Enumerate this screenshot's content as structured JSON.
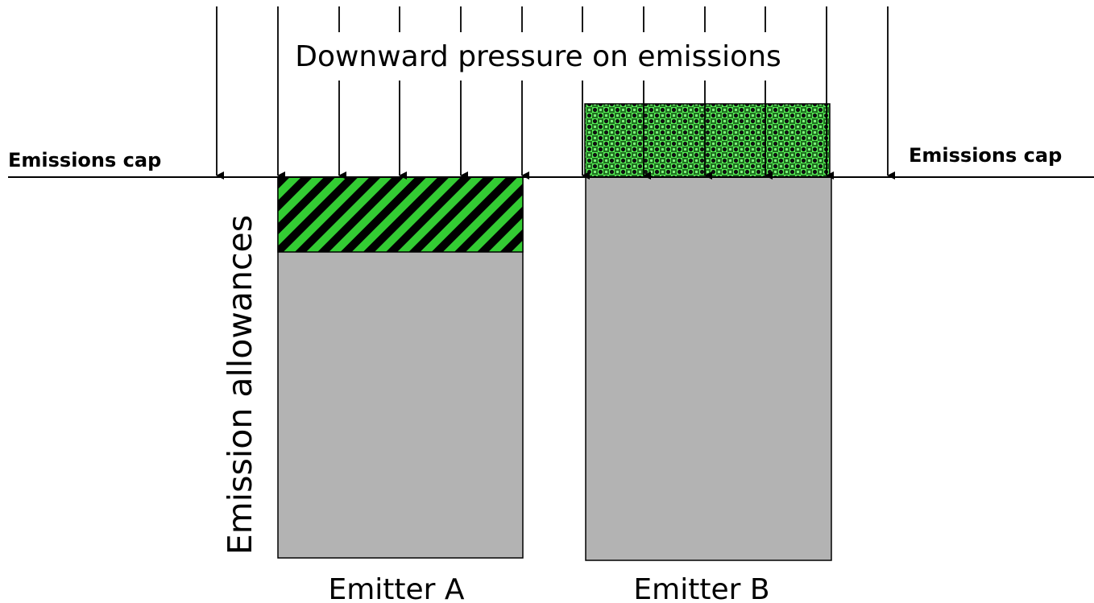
{
  "diagram": {
    "pressure_label": "Downward pressure on emissions",
    "cap_label_left": "Emissions cap",
    "cap_label_right": "Emissions cap",
    "y_axis_label": "Emission allowances",
    "emitters": [
      {
        "name": "Emitter A",
        "segment": "hatched allowance surplus below cap"
      },
      {
        "name": "Emitter B",
        "segment": "checkered emissions above cap"
      }
    ],
    "colors": {
      "bar_fill": "#b3b3b3",
      "accent_green": "#33cc33",
      "line": "#000000",
      "background": "#ffffff"
    },
    "arrow_count": 12
  }
}
